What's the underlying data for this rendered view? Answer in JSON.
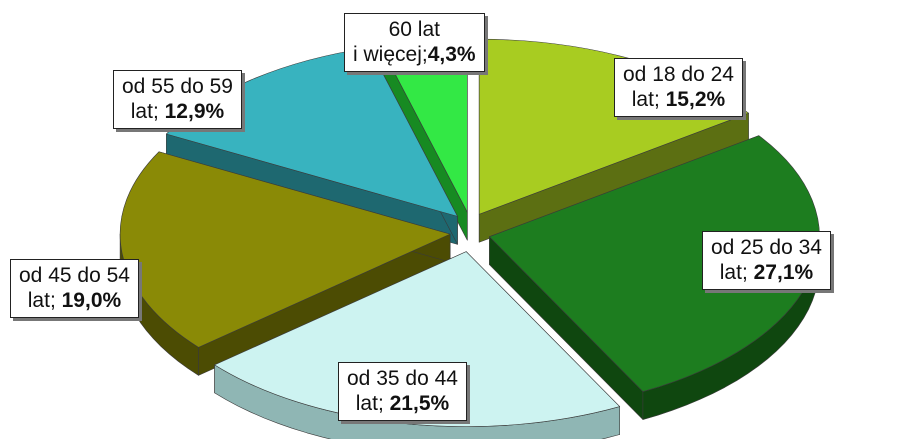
{
  "chart_data": {
    "type": "pie",
    "style": "3d-exploded",
    "unit": "%",
    "slices": [
      {
        "line1": "od 18 do 24",
        "line2": "lat;",
        "value": 15.2,
        "value_label": "15,2%",
        "top_color": "#a8cc21",
        "side_color": "#5c6f12"
      },
      {
        "line1": "od 25 do 34",
        "line2": "lat;",
        "value": 27.1,
        "value_label": "27,1%",
        "top_color": "#1d7d1f",
        "side_color": "#0f470f"
      },
      {
        "line1": "od 35 do 44",
        "line2": "lat;",
        "value": 21.5,
        "value_label": "21,5%",
        "top_color": "#cdf3f1",
        "side_color": "#8fb6b4"
      },
      {
        "line1": "od 45 do 54",
        "line2": "lat;",
        "value": 19.0,
        "value_label": "19,0%",
        "top_color": "#8a8a06",
        "side_color": "#4c4c03"
      },
      {
        "line1": "od 55 do 59",
        "line2": "lat;",
        "value": 12.9,
        "value_label": "12,9%",
        "top_color": "#38b3bf",
        "side_color": "#1e6870"
      },
      {
        "line1": "60 lat",
        "line2": "i więcej;",
        "value": 4.3,
        "value_label": "4,3%",
        "top_color": "#33e845",
        "side_color": "#178a22"
      }
    ]
  }
}
